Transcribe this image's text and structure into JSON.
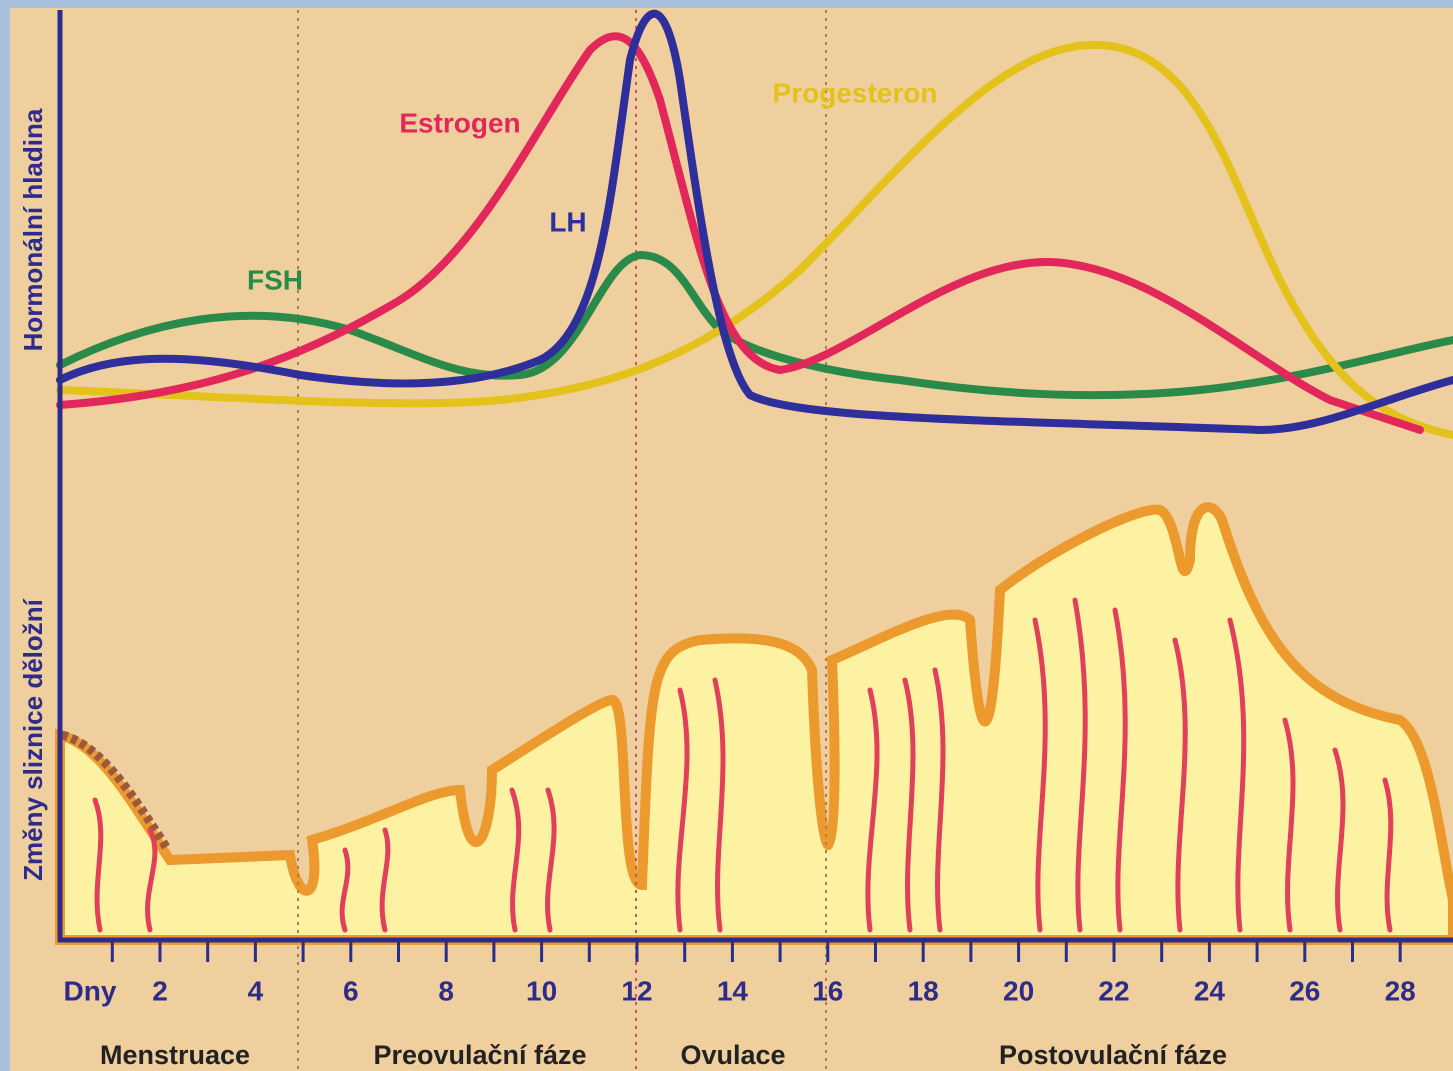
{
  "axes": {
    "y_top_label": "Hormonální hladina",
    "y_bottom_label": "Změny sliznice děložní"
  },
  "curves": [
    {
      "label": "Estrogen"
    },
    {
      "label": "LH"
    },
    {
      "label": "FSH"
    },
    {
      "label": "Progesteron"
    }
  ],
  "x_axis": {
    "unit_label": "Dny",
    "ticks": [
      "2",
      "4",
      "6",
      "8",
      "10",
      "12",
      "14",
      "16",
      "18",
      "20",
      "22",
      "24",
      "26",
      "28"
    ]
  },
  "phases": [
    "Menstruace",
    "Preovulační fáze",
    "Ovulace",
    "Postovulační fáze"
  ]
}
